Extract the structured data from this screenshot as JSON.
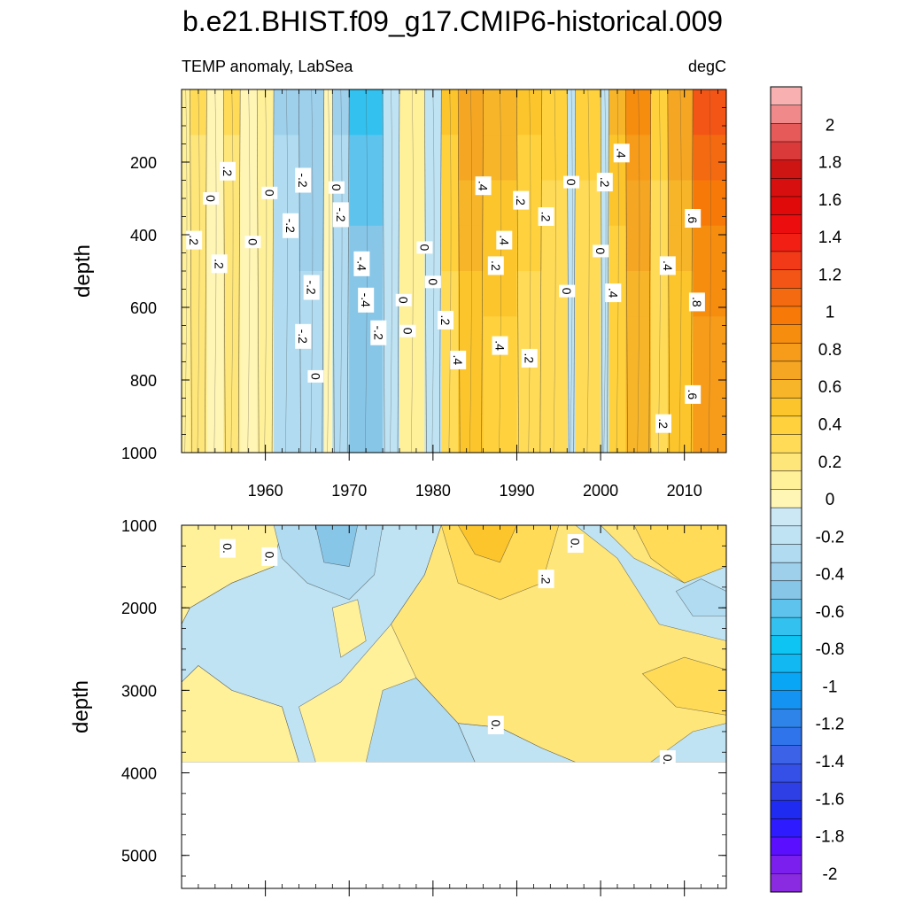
{
  "title": "b.e21.BHIST.f09_g17.CMIP6-historical.009",
  "chart_data": [
    {
      "type": "heatmap",
      "panel": "upper",
      "title": "TEMP anomaly, LabSea",
      "units": "degC",
      "xlabel": "",
      "ylabel": "depth",
      "xlim": [
        1950,
        2015
      ],
      "ylim": [
        0,
        1000
      ],
      "y_inverted": true,
      "x_ticks": [
        1960,
        1970,
        1980,
        1990,
        2000,
        2010
      ],
      "y_ticks": [
        200,
        400,
        600,
        800,
        1000
      ],
      "x_tick_labels": [
        "1960",
        "1970",
        "1980",
        "1990",
        "2000",
        "2010"
      ],
      "y_tick_labels": [
        "200",
        "400",
        "600",
        "800",
        "1000"
      ],
      "columns": [
        {
          "x0": 1950,
          "x1": 1951,
          "value": 0.1
        },
        {
          "x0": 1951,
          "x1": 1953,
          "value": 0.2
        },
        {
          "x0": 1953,
          "x1": 1955,
          "value": 0.05
        },
        {
          "x0": 1955,
          "x1": 1957,
          "value": 0.2
        },
        {
          "x0": 1957,
          "x1": 1959,
          "value": 0.02
        },
        {
          "x0": 1959,
          "x1": 1961,
          "value": 0.1
        },
        {
          "x0": 1961,
          "x1": 1964,
          "value": -0.2
        },
        {
          "x0": 1964,
          "x1": 1967,
          "value": -0.25
        },
        {
          "x0": 1967,
          "x1": 1968,
          "value": 0.05
        },
        {
          "x0": 1968,
          "x1": 1970,
          "value": -0.2
        },
        {
          "x0": 1970,
          "x1": 1974,
          "value": -0.4
        },
        {
          "x0": 1974,
          "x1": 1976,
          "value": -0.1
        },
        {
          "x0": 1976,
          "x1": 1979,
          "value": 0.1
        },
        {
          "x0": 1979,
          "x1": 1981,
          "value": -0.1
        },
        {
          "x0": 1981,
          "x1": 1983,
          "value": 0.35
        },
        {
          "x0": 1983,
          "x1": 1986,
          "value": 0.5
        },
        {
          "x0": 1986,
          "x1": 1990,
          "value": 0.45
        },
        {
          "x0": 1990,
          "x1": 1993,
          "value": 0.35
        },
        {
          "x0": 1993,
          "x1": 1996,
          "value": 0.3
        },
        {
          "x0": 1996,
          "x1": 1997,
          "value": -0.1
        },
        {
          "x0": 1997,
          "x1": 2000,
          "value": 0.3
        },
        {
          "x0": 2000,
          "x1": 2001,
          "value": -0.1
        },
        {
          "x0": 2001,
          "x1": 2003,
          "value": 0.4
        },
        {
          "x0": 2003,
          "x1": 2006,
          "value": 0.6
        },
        {
          "x0": 2006,
          "x1": 2008,
          "value": 0.3
        },
        {
          "x0": 2008,
          "x1": 2011,
          "value": 0.5
        },
        {
          "x0": 2011,
          "x1": 2015,
          "value": 0.8
        }
      ],
      "contour_labels": [
        {
          "x": 1951.5,
          "y": 415,
          "text": ".2"
        },
        {
          "x": 1953.5,
          "y": 300,
          "text": "0"
        },
        {
          "x": 1955.5,
          "y": 225,
          "text": ".2"
        },
        {
          "x": 1954.5,
          "y": 480,
          "text": ".2"
        },
        {
          "x": 1958.5,
          "y": 420,
          "text": "0"
        },
        {
          "x": 1960.5,
          "y": 285,
          "text": "0"
        },
        {
          "x": 1964.5,
          "y": 250,
          "text": "-.2"
        },
        {
          "x": 1963,
          "y": 375,
          "text": "-.2"
        },
        {
          "x": 1968.5,
          "y": 270,
          "text": "0"
        },
        {
          "x": 1969,
          "y": 345,
          "text": "-.2"
        },
        {
          "x": 1965.5,
          "y": 545,
          "text": "-.2"
        },
        {
          "x": 1964.5,
          "y": 680,
          "text": "-.2"
        },
        {
          "x": 1971.5,
          "y": 480,
          "text": "-.4"
        },
        {
          "x": 1972,
          "y": 580,
          "text": "-.4"
        },
        {
          "x": 1973.5,
          "y": 670,
          "text": "-.2"
        },
        {
          "x": 1966,
          "y": 790,
          "text": "0"
        },
        {
          "x": 1976.5,
          "y": 580,
          "text": "0"
        },
        {
          "x": 1977,
          "y": 665,
          "text": "0"
        },
        {
          "x": 1979,
          "y": 435,
          "text": "0"
        },
        {
          "x": 1980,
          "y": 530,
          "text": "0"
        },
        {
          "x": 1981.5,
          "y": 635,
          "text": ".2"
        },
        {
          "x": 1983,
          "y": 745,
          "text": ".4"
        },
        {
          "x": 1986,
          "y": 265,
          "text": ".4"
        },
        {
          "x": 1988.5,
          "y": 415,
          "text": ".4"
        },
        {
          "x": 1987.5,
          "y": 485,
          "text": ".2"
        },
        {
          "x": 1988,
          "y": 705,
          "text": ".4"
        },
        {
          "x": 1990.5,
          "y": 305,
          "text": ".2"
        },
        {
          "x": 1993.5,
          "y": 350,
          "text": ".2"
        },
        {
          "x": 1991.5,
          "y": 740,
          "text": ".2"
        },
        {
          "x": 1996.5,
          "y": 255,
          "text": "0"
        },
        {
          "x": 2000.5,
          "y": 255,
          "text": ".2"
        },
        {
          "x": 2002.5,
          "y": 175,
          "text": ".4"
        },
        {
          "x": 2000,
          "y": 445,
          "text": "0"
        },
        {
          "x": 1996,
          "y": 555,
          "text": "0"
        },
        {
          "x": 2001.5,
          "y": 560,
          "text": ".4"
        },
        {
          "x": 2008,
          "y": 485,
          "text": ".4"
        },
        {
          "x": 2011,
          "y": 355,
          "text": ".6"
        },
        {
          "x": 2011.5,
          "y": 585,
          "text": ".8"
        },
        {
          "x": 2011,
          "y": 840,
          "text": ".6"
        },
        {
          "x": 2007.5,
          "y": 920,
          "text": ".2"
        }
      ]
    },
    {
      "type": "heatmap",
      "panel": "lower",
      "title": "",
      "xlabel": "",
      "ylabel": "depth",
      "xlim": [
        1950,
        2015
      ],
      "ylim": [
        1000,
        5400
      ],
      "y_inverted": true,
      "data_bottom_depth": 3870,
      "x_ticks": [
        1960,
        1970,
        1980,
        1990,
        2000,
        2010
      ],
      "y_ticks": [
        1000,
        2000,
        3000,
        4000,
        5000
      ],
      "y_tick_labels": [
        "1000",
        "2000",
        "3000",
        "4000",
        "5000"
      ],
      "regions": [
        {
          "value": 0.1,
          "points": [
            [
              1950,
              1000
            ],
            [
              1962,
              1000
            ],
            [
              1961,
              1500
            ],
            [
              1956,
              1700
            ],
            [
              1951,
              2000
            ],
            [
              1950,
              2200
            ]
          ]
        },
        {
          "value": 0.15,
          "points": [
            [
              1950,
              2900
            ],
            [
              1952,
              2700
            ],
            [
              1956,
              3000
            ],
            [
              1962,
              3200
            ],
            [
              1964,
              3870
            ],
            [
              1950,
              3870
            ]
          ]
        },
        {
          "value": -0.15,
          "points": [
            [
              1950,
              2200
            ],
            [
              1951,
              2000
            ],
            [
              1956,
              1700
            ],
            [
              1961,
              1500
            ],
            [
              1962,
              1000
            ],
            [
              1981,
              1000
            ],
            [
              1979,
              1600
            ],
            [
              1975,
              2200
            ],
            [
              1969,
              2900
            ],
            [
              1964,
              3200
            ],
            [
              1966,
              3870
            ],
            [
              1964,
              3870
            ],
            [
              1962,
              3200
            ],
            [
              1956,
              3000
            ],
            [
              1952,
              2700
            ],
            [
              1950,
              2900
            ]
          ]
        },
        {
          "value": -0.3,
          "points": [
            [
              1961,
              1000
            ],
            [
              1974,
              1000
            ],
            [
              1973,
              1600
            ],
            [
              1970,
              1900
            ],
            [
              1965,
              1700
            ],
            [
              1962,
              1400
            ]
          ]
        },
        {
          "value": -0.45,
          "points": [
            [
              1966,
              1000
            ],
            [
              1971,
              1000
            ],
            [
              1970,
              1500
            ],
            [
              1967,
              1450
            ]
          ]
        },
        {
          "value": -0.3,
          "points": [
            [
              1974,
              3000
            ],
            [
              1978,
              2850
            ],
            [
              1983,
              3400
            ],
            [
              1985,
              3870
            ],
            [
              1972,
              3870
            ]
          ]
        },
        {
          "value": 0.1,
          "points": [
            [
              1968,
              2000
            ],
            [
              1971,
              1900
            ],
            [
              1972,
              2400
            ],
            [
              1969,
              2600
            ]
          ]
        },
        {
          "value": -0.15,
          "points": [
            [
              1985,
              3870
            ],
            [
              1983,
              3400
            ],
            [
              1988,
              3450
            ],
            [
              1993,
              3700
            ],
            [
              1997,
              3870
            ]
          ]
        },
        {
          "value": 0.2,
          "points": [
            [
              1979,
              1600
            ],
            [
              1981,
              1000
            ],
            [
              2015,
              1000
            ],
            [
              2015,
              3870
            ],
            [
              1997,
              3870
            ],
            [
              1993,
              3700
            ],
            [
              1988,
              3450
            ],
            [
              1983,
              3400
            ],
            [
              1978,
              2850
            ],
            [
              1975,
              2200
            ]
          ]
        },
        {
          "value": 0.35,
          "points": [
            [
              1981,
              1000
            ],
            [
              1995,
              1000
            ],
            [
              1993,
              1700
            ],
            [
              1988,
              1900
            ],
            [
              1983,
              1700
            ]
          ]
        },
        {
          "value": 0.5,
          "points": [
            [
              1983,
              1000
            ],
            [
              1990,
              1000
            ],
            [
              1988,
              1450
            ],
            [
              1985,
              1350
            ]
          ]
        },
        {
          "value": 0.3,
          "points": [
            [
              2004,
              1000
            ],
            [
              2015,
              1000
            ],
            [
              2015,
              1600
            ],
            [
              2010,
              1700
            ],
            [
              2006,
              1400
            ]
          ]
        },
        {
          "value": -0.15,
          "points": [
            [
              1997,
              1000
            ],
            [
              2002,
              1400
            ],
            [
              2007,
              2200
            ],
            [
              2015,
              2400
            ],
            [
              2015,
              1500
            ],
            [
              2010,
              1700
            ],
            [
              2004,
              1400
            ],
            [
              2000,
              1000
            ]
          ]
        },
        {
          "value": -0.3,
          "points": [
            [
              2009,
              1800
            ],
            [
              2012,
              1650
            ],
            [
              2015,
              1800
            ],
            [
              2015,
              2100
            ],
            [
              2011,
              2100
            ]
          ]
        },
        {
          "value": -0.15,
          "points": [
            [
              2006,
              3870
            ],
            [
              2011,
              3500
            ],
            [
              2015,
              3400
            ],
            [
              2015,
              3870
            ]
          ]
        },
        {
          "value": 0.3,
          "points": [
            [
              2005,
              2800
            ],
            [
              2010,
              2600
            ],
            [
              2015,
              2750
            ],
            [
              2015,
              3300
            ],
            [
              2009,
              3200
            ]
          ]
        }
      ],
      "contour_labels": [
        {
          "x": 1955.5,
          "y": 1280,
          "text": "0."
        },
        {
          "x": 1960.5,
          "y": 1380,
          "text": "0."
        },
        {
          "x": 1993.5,
          "y": 1650,
          "text": ".2"
        },
        {
          "x": 1997,
          "y": 1220,
          "text": "0."
        },
        {
          "x": 1987.5,
          "y": 3420,
          "text": "0."
        },
        {
          "x": 2008,
          "y": 3840,
          "text": "0."
        }
      ]
    },
    {
      "type": "colorbar",
      "levels": [
        -2.1,
        -2.0,
        -1.9,
        -1.8,
        -1.7,
        -1.6,
        -1.5,
        -1.4,
        -1.3,
        -1.2,
        -1.1,
        -1.0,
        -0.9,
        -0.8,
        -0.7,
        -0.6,
        -0.5,
        -0.4,
        -0.3,
        -0.2,
        -0.1,
        0.0,
        0.1,
        0.2,
        0.3,
        0.4,
        0.5,
        0.6,
        0.7,
        0.8,
        0.9,
        1.0,
        1.1,
        1.2,
        1.3,
        1.4,
        1.5,
        1.6,
        1.7,
        1.8,
        1.9,
        2.0,
        2.1,
        2.2
      ],
      "tick_values": [
        2,
        1.8,
        1.6,
        1.4,
        1.2,
        1,
        0.8,
        0.6,
        0.4,
        0.2,
        0,
        -0.2,
        -0.4,
        -0.6,
        -0.8,
        -1,
        -1.2,
        -1.4,
        -1.6,
        -1.8,
        -2
      ],
      "tick_labels": [
        "2",
        "1.8",
        "1.6",
        "1.4",
        "1.2",
        "1",
        "0.8",
        "0.6",
        "0.4",
        "0.2",
        "0",
        "-0.2",
        "-0.4",
        "-0.6",
        "-0.8",
        "-1",
        "-1.2",
        "-1.4",
        "-1.6",
        "-1.8",
        "-2"
      ],
      "colors": [
        "#8a2be2",
        "#7b1fef",
        "#5a10ff",
        "#2f1bff",
        "#1f2bf0",
        "#2f3fe6",
        "#3550e6",
        "#3c62e8",
        "#2f74ea",
        "#2f84ea",
        "#1593f2",
        "#0aa6f6",
        "#12b8f2",
        "#0dc4f2",
        "#33c2ef",
        "#5ec4ee",
        "#88c6e8",
        "#9ed0ec",
        "#b0dbf0",
        "#bfe3f3",
        "#cbe8f4",
        "#fff5b5",
        "#fff09a",
        "#ffe67a",
        "#ffdb58",
        "#ffd23d",
        "#fcc52c",
        "#f7b52a",
        "#f5a623",
        "#f79c1a",
        "#f78d0f",
        "#f77a08",
        "#f46a10",
        "#f25515",
        "#f23a18",
        "#f11f14",
        "#ec0e0e",
        "#e00a0a",
        "#d80f0f",
        "#cf1414",
        "#da3a3a",
        "#e65a5a",
        "#f08a8a",
        "#f8b0b0"
      ]
    }
  ]
}
